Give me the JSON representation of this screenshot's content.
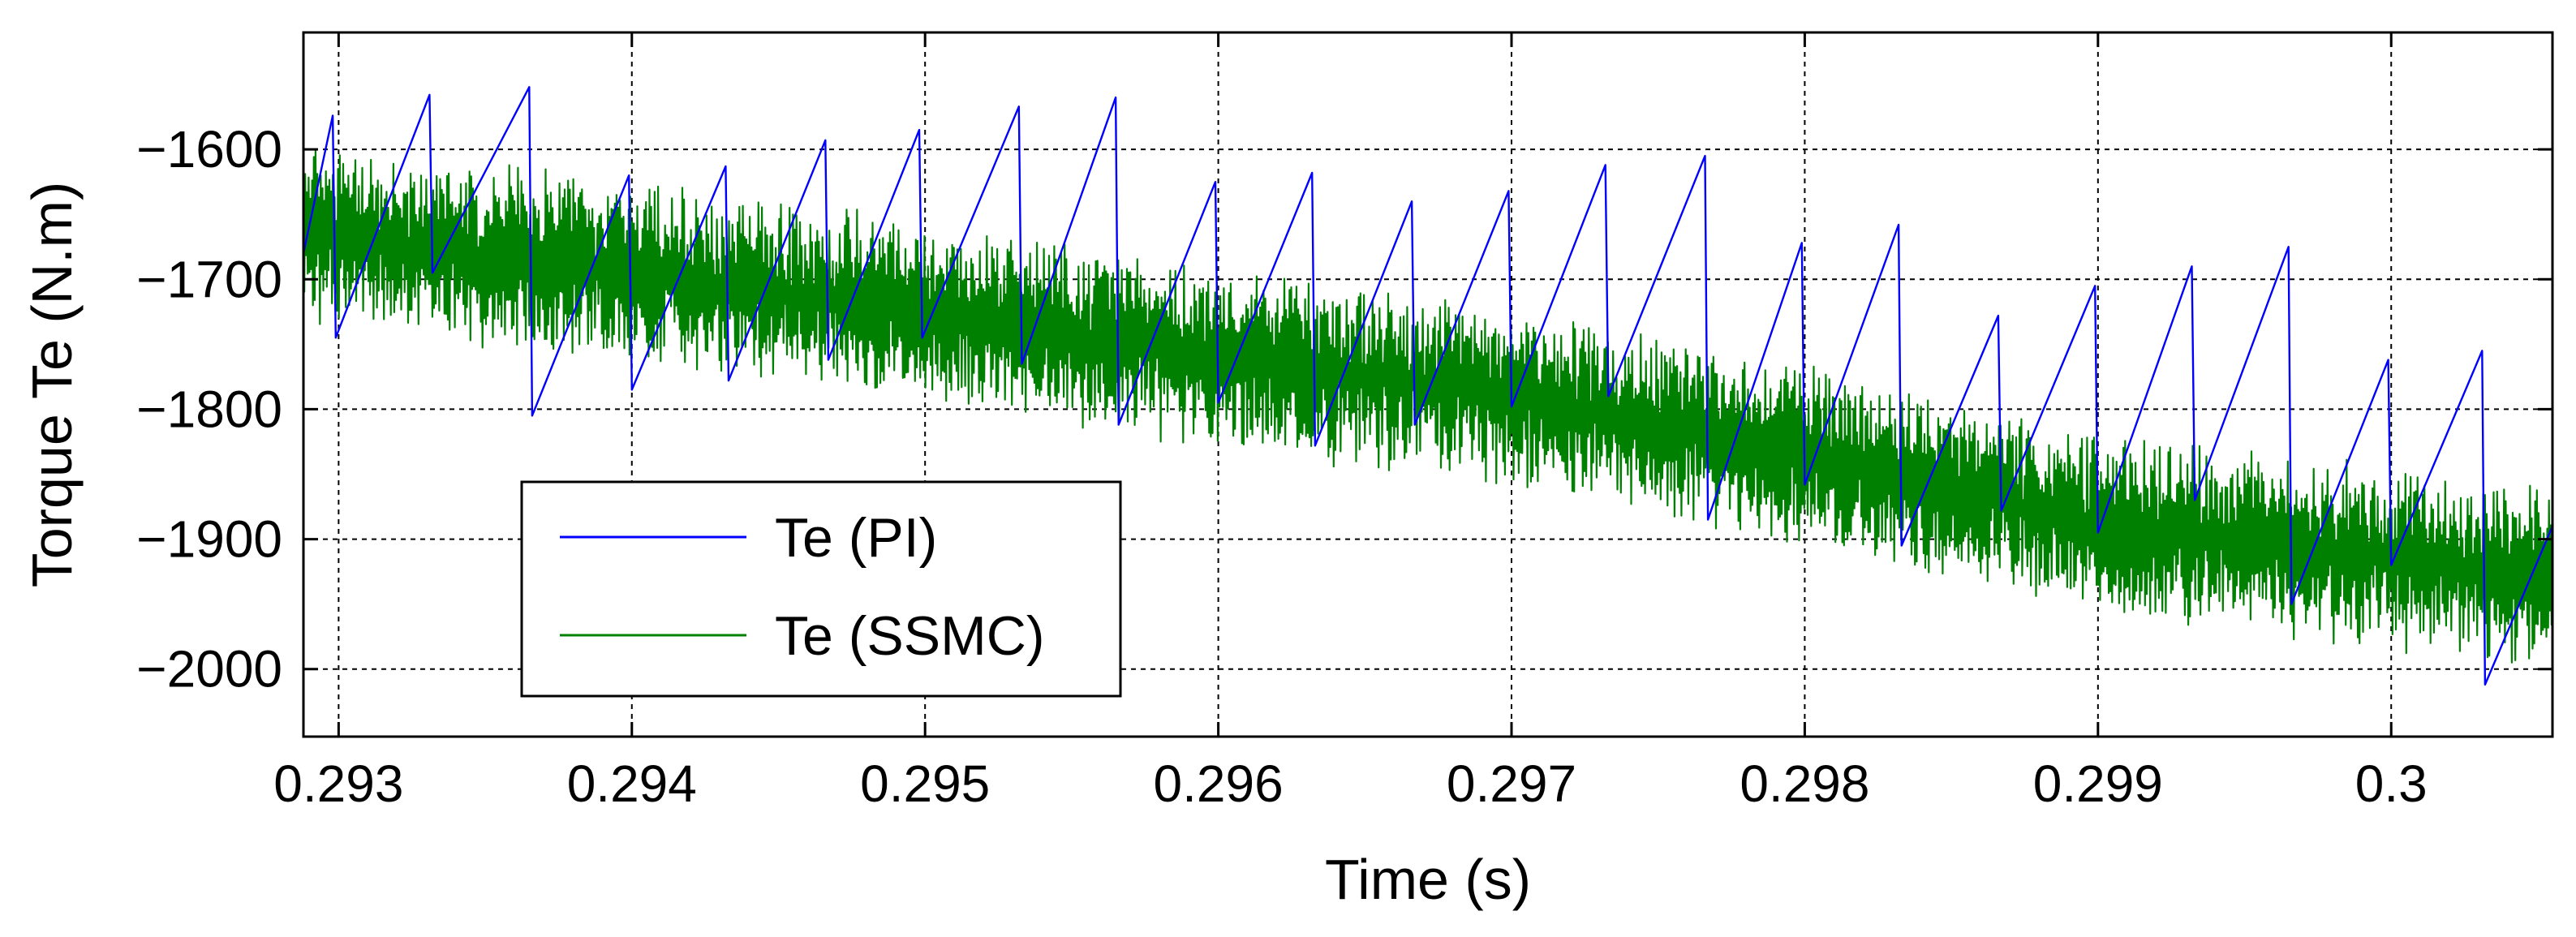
{
  "chart_data": {
    "type": "line",
    "title": "",
    "xlabel": "Time (s)",
    "ylabel": "Torque Te (N.m)",
    "xlim": [
      0.29288,
      0.30055
    ],
    "ylim": [
      -2052,
      -1510
    ],
    "xticks": [
      0.293,
      0.294,
      0.295,
      0.296,
      0.297,
      0.298,
      0.299,
      0.3
    ],
    "xtick_labels": [
      "0.293",
      "0.294",
      "0.295",
      "0.296",
      "0.297",
      "0.298",
      "0.299",
      "0.3"
    ],
    "yticks": [
      -1600,
      -1700,
      -1800,
      -1900,
      -2000
    ],
    "ytick_labels": [
      "−1600",
      "−1700",
      "−1800",
      "−1900",
      "−2000"
    ],
    "grid": true,
    "legend_position": "lower-left",
    "series": [
      {
        "name": "Te (PI)",
        "color": "#0000ff",
        "style": "sawtooth",
        "points": [
          [
            0.29288,
            -1680
          ],
          [
            0.29298,
            -1574
          ],
          [
            0.29299,
            -1745
          ],
          [
            0.29331,
            -1558
          ],
          [
            0.29332,
            -1695
          ],
          [
            0.29365,
            -1552
          ],
          [
            0.29366,
            -1805
          ],
          [
            0.29399,
            -1620
          ],
          [
            0.294,
            -1785
          ],
          [
            0.29432,
            -1613
          ],
          [
            0.29433,
            -1778
          ],
          [
            0.29466,
            -1593
          ],
          [
            0.29467,
            -1762
          ],
          [
            0.29498,
            -1585
          ],
          [
            0.29499,
            -1745
          ],
          [
            0.29532,
            -1567
          ],
          [
            0.29533,
            -1765
          ],
          [
            0.29565,
            -1560
          ],
          [
            0.29566,
            -1812
          ],
          [
            0.29599,
            -1625
          ],
          [
            0.296,
            -1795
          ],
          [
            0.29632,
            -1618
          ],
          [
            0.29633,
            -1828
          ],
          [
            0.29666,
            -1640
          ],
          [
            0.29667,
            -1812
          ],
          [
            0.29699,
            -1632
          ],
          [
            0.297,
            -1798
          ],
          [
            0.29732,
            -1612
          ],
          [
            0.29733,
            -1790
          ],
          [
            0.29766,
            -1605
          ],
          [
            0.29767,
            -1885
          ],
          [
            0.29799,
            -1672
          ],
          [
            0.298,
            -1858
          ],
          [
            0.29832,
            -1658
          ],
          [
            0.29833,
            -1905
          ],
          [
            0.29866,
            -1728
          ],
          [
            0.29867,
            -1878
          ],
          [
            0.29899,
            -1705
          ],
          [
            0.299,
            -1895
          ],
          [
            0.29932,
            -1690
          ],
          [
            0.29933,
            -1870
          ],
          [
            0.29965,
            -1675
          ],
          [
            0.29966,
            -1950
          ],
          [
            0.29999,
            -1762
          ],
          [
            0.3,
            -1920
          ],
          [
            0.30031,
            -1755
          ],
          [
            0.30032,
            -2012
          ],
          [
            0.30055,
            -1890
          ]
        ]
      },
      {
        "name": "Te (SSMC)",
        "color": "#008000",
        "style": "noise",
        "trend_points": [
          [
            0.29288,
            -1665
          ],
          [
            0.294,
            -1695
          ],
          [
            0.295,
            -1725
          ],
          [
            0.296,
            -1760
          ],
          [
            0.297,
            -1790
          ],
          [
            0.298,
            -1835
          ],
          [
            0.299,
            -1890
          ],
          [
            0.3,
            -1915
          ],
          [
            0.30055,
            -1930
          ]
        ],
        "amplitude": 62
      }
    ]
  }
}
